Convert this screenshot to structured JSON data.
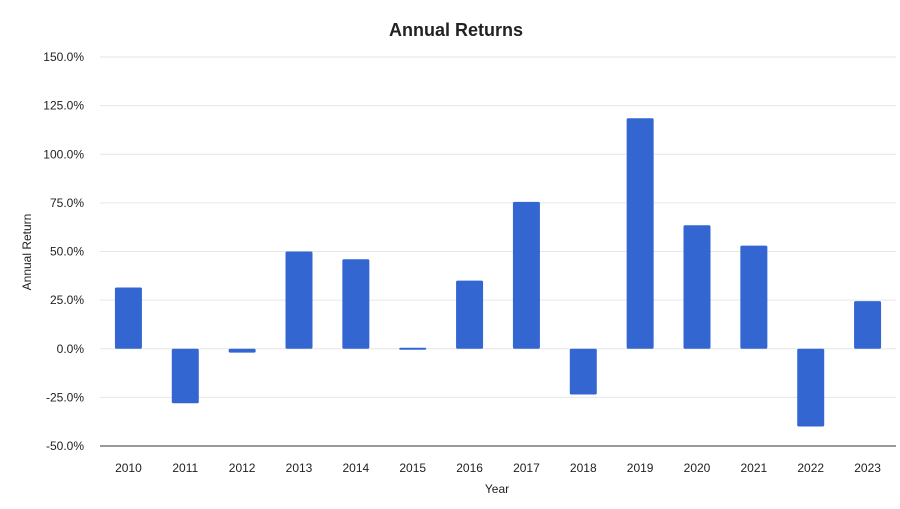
{
  "chart_data": {
    "type": "bar",
    "title": "Annual Returns",
    "xlabel": "Year",
    "ylabel": "Annual Return",
    "categories": [
      "2010",
      "2011",
      "2012",
      "2013",
      "2014",
      "2015",
      "2016",
      "2017",
      "2018",
      "2019",
      "2020",
      "2021",
      "2022",
      "2023"
    ],
    "values": [
      31.5,
      -28.0,
      -2.0,
      50.0,
      46.0,
      1.0,
      35.0,
      75.5,
      -23.5,
      118.5,
      63.5,
      53.0,
      -40.0,
      24.5
    ],
    "y_ticks": [
      -50,
      -25,
      0,
      25,
      50,
      75,
      100,
      125,
      150
    ],
    "y_tick_labels": [
      "-50.0%",
      "-25.0%",
      "0.0%",
      "25.0%",
      "50.0%",
      "75.0%",
      "100.0%",
      "125.0%",
      "150.0%"
    ],
    "ylim": [
      -50,
      150
    ],
    "grid": true,
    "legend": "none",
    "bar_color": "#3366d1"
  }
}
